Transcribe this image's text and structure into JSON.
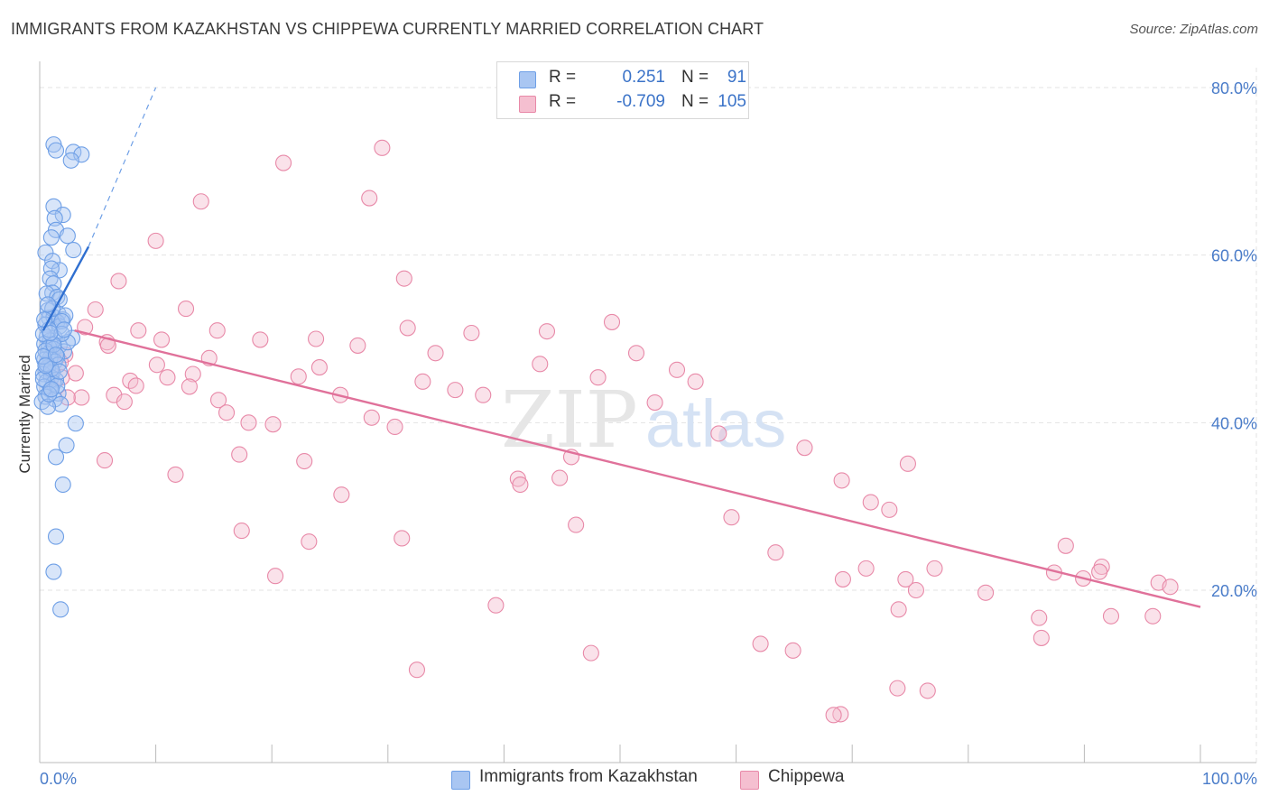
{
  "title": "IMMIGRANTS FROM KAZAKHSTAN VS CHIPPEWA CURRENTLY MARRIED CORRELATION CHART",
  "source": "Source: ZipAtlas.com",
  "watermark": {
    "zip": "ZIP",
    "atlas": "atlas"
  },
  "legend": {
    "rows": [
      {
        "r_label": "R =",
        "r_value": "0.251",
        "n_label": "N =",
        "n_value": "91"
      },
      {
        "r_label": "R =",
        "r_value": "-0.709",
        "n_label": "N =",
        "n_value": "105"
      }
    ]
  },
  "colors": {
    "blue": "#6e9fe6",
    "blue_fill": "#a9c6f2",
    "blue_line": "#2f6fd0",
    "pink": "#e889a8",
    "pink_fill": "#f5bfd0",
    "pink_line": "#e0719a",
    "grid": "#e3e3e3",
    "tick_text": "#4a7cc9"
  },
  "chart_data": {
    "type": "scatter",
    "title": "IMMIGRANTS FROM KAZAKHSTAN VS CHIPPEWA CURRENTLY MARRIED CORRELATION CHART",
    "xlabel": "",
    "ylabel": "Currently Married",
    "xlim": [
      0,
      100
    ],
    "ylim": [
      0,
      82
    ],
    "x_tick_labels": [
      "0.0%",
      "100.0%"
    ],
    "y_ticks": [
      20,
      40,
      60,
      80
    ],
    "y_tick_labels": [
      "20.0%",
      "40.0%",
      "60.0%",
      "80.0%"
    ],
    "grid": true,
    "legend_position": "top-center",
    "series": [
      {
        "name": "Immigrants from Kazakhstan",
        "r": 0.251,
        "n": 91,
        "trend": {
          "x": [
            0.3,
            4.2
          ],
          "y": [
            51.0,
            61.0
          ]
        },
        "trend_extension": {
          "x": [
            4.2,
            10.0
          ],
          "y": [
            61.0,
            80.0
          ]
        },
        "points": [
          [
            1.2,
            73.2
          ],
          [
            1.4,
            72.5
          ],
          [
            2.9,
            72.3
          ],
          [
            3.6,
            72.0
          ],
          [
            2.7,
            71.3
          ],
          [
            1.2,
            65.8
          ],
          [
            2.0,
            64.8
          ],
          [
            1.3,
            64.4
          ],
          [
            1.4,
            63.0
          ],
          [
            2.4,
            62.3
          ],
          [
            1.0,
            62.1
          ],
          [
            0.5,
            60.3
          ],
          [
            2.9,
            60.6
          ],
          [
            1.1,
            59.3
          ],
          [
            1.7,
            58.2
          ],
          [
            1.0,
            58.4
          ],
          [
            0.9,
            57.2
          ],
          [
            1.2,
            56.6
          ],
          [
            1.1,
            55.5
          ],
          [
            0.6,
            55.4
          ],
          [
            1.5,
            55.0
          ],
          [
            1.7,
            54.7
          ],
          [
            0.7,
            53.4
          ],
          [
            1.6,
            53.0
          ],
          [
            0.8,
            52.5
          ],
          [
            1.2,
            52.6
          ],
          [
            2.0,
            52.3
          ],
          [
            1.5,
            52.0
          ],
          [
            0.5,
            51.7
          ],
          [
            1.7,
            51.5
          ],
          [
            2.2,
            52.8
          ],
          [
            0.6,
            50.2
          ],
          [
            1.3,
            50.1
          ],
          [
            2.8,
            50.1
          ],
          [
            0.9,
            49.8
          ],
          [
            0.4,
            49.4
          ],
          [
            1.7,
            49.2
          ],
          [
            0.8,
            49.0
          ],
          [
            1.2,
            48.8
          ],
          [
            2.1,
            48.5
          ],
          [
            0.7,
            48.2
          ],
          [
            1.5,
            47.9
          ],
          [
            0.9,
            47.7
          ],
          [
            0.4,
            47.5
          ],
          [
            1.3,
            47.3
          ],
          [
            1.6,
            46.9
          ],
          [
            0.7,
            46.6
          ],
          [
            0.5,
            46.2
          ],
          [
            1.1,
            46.0
          ],
          [
            0.3,
            45.8
          ],
          [
            1.0,
            45.4
          ],
          [
            1.4,
            45.1
          ],
          [
            0.6,
            44.9
          ],
          [
            1.2,
            44.7
          ],
          [
            0.4,
            44.3
          ],
          [
            0.9,
            43.9
          ],
          [
            1.6,
            43.5
          ],
          [
            0.5,
            43.1
          ],
          [
            1.3,
            42.8
          ],
          [
            0.2,
            42.5
          ],
          [
            1.8,
            42.2
          ],
          [
            0.7,
            41.9
          ],
          [
            3.1,
            39.9
          ],
          [
            2.3,
            37.3
          ],
          [
            1.4,
            35.9
          ],
          [
            2.0,
            32.6
          ],
          [
            1.4,
            26.4
          ],
          [
            1.2,
            22.2
          ],
          [
            1.8,
            17.7
          ],
          [
            0.3,
            50.6
          ],
          [
            0.8,
            51.1
          ],
          [
            1.9,
            52.1
          ],
          [
            0.6,
            47.0
          ],
          [
            1.0,
            46.4
          ],
          [
            2.4,
            49.6
          ],
          [
            0.5,
            48.6
          ],
          [
            1.1,
            53.6
          ],
          [
            0.3,
            45.2
          ],
          [
            1.5,
            44.4
          ],
          [
            0.8,
            43.4
          ],
          [
            1.9,
            50.6
          ],
          [
            0.4,
            52.3
          ],
          [
            1.7,
            46.1
          ],
          [
            0.7,
            54.1
          ],
          [
            1.2,
            49.3
          ],
          [
            0.3,
            47.9
          ],
          [
            2.1,
            51.1
          ],
          [
            0.9,
            50.7
          ],
          [
            1.4,
            48.1
          ],
          [
            0.5,
            46.8
          ],
          [
            1.0,
            44.0
          ]
        ]
      },
      {
        "name": "Chippewa",
        "r": -0.709,
        "n": 105,
        "trend": {
          "x": [
            3.0,
            100.0
          ],
          "y": [
            51.0,
            18.0
          ]
        },
        "points": [
          [
            29.5,
            72.8
          ],
          [
            21.0,
            71.0
          ],
          [
            28.4,
            66.8
          ],
          [
            13.9,
            66.4
          ],
          [
            10.0,
            61.7
          ],
          [
            31.4,
            57.2
          ],
          [
            6.8,
            56.9
          ],
          [
            12.6,
            53.6
          ],
          [
            4.8,
            53.5
          ],
          [
            3.9,
            51.4
          ],
          [
            8.5,
            51.0
          ],
          [
            15.3,
            51.0
          ],
          [
            31.7,
            51.3
          ],
          [
            37.2,
            50.7
          ],
          [
            43.7,
            50.9
          ],
          [
            49.3,
            52.0
          ],
          [
            19.0,
            49.9
          ],
          [
            23.8,
            50.0
          ],
          [
            27.4,
            49.2
          ],
          [
            10.5,
            49.9
          ],
          [
            5.8,
            49.6
          ],
          [
            5.9,
            49.2
          ],
          [
            2.2,
            48.1
          ],
          [
            1.8,
            47.2
          ],
          [
            14.6,
            47.7
          ],
          [
            34.1,
            48.3
          ],
          [
            43.1,
            47.0
          ],
          [
            51.4,
            48.3
          ],
          [
            48.1,
            45.4
          ],
          [
            54.9,
            46.3
          ],
          [
            56.5,
            44.9
          ],
          [
            24.1,
            46.6
          ],
          [
            22.3,
            45.5
          ],
          [
            10.1,
            46.9
          ],
          [
            13.2,
            45.8
          ],
          [
            11.0,
            45.4
          ],
          [
            3.1,
            45.9
          ],
          [
            1.9,
            45.4
          ],
          [
            7.8,
            45.0
          ],
          [
            8.3,
            44.4
          ],
          [
            12.9,
            44.3
          ],
          [
            33.0,
            44.9
          ],
          [
            35.8,
            43.9
          ],
          [
            25.9,
            43.3
          ],
          [
            38.2,
            43.3
          ],
          [
            6.4,
            43.3
          ],
          [
            3.6,
            43.0
          ],
          [
            2.4,
            43.0
          ],
          [
            7.3,
            42.5
          ],
          [
            15.4,
            42.7
          ],
          [
            53.0,
            42.4
          ],
          [
            16.1,
            41.2
          ],
          [
            28.6,
            40.6
          ],
          [
            18.0,
            40.0
          ],
          [
            20.1,
            39.8
          ],
          [
            30.6,
            39.5
          ],
          [
            58.5,
            38.7
          ],
          [
            65.9,
            37.0
          ],
          [
            17.2,
            36.2
          ],
          [
            45.8,
            35.9
          ],
          [
            5.6,
            35.5
          ],
          [
            22.8,
            35.4
          ],
          [
            11.7,
            33.8
          ],
          [
            44.8,
            33.4
          ],
          [
            41.2,
            33.3
          ],
          [
            41.4,
            32.6
          ],
          [
            74.8,
            35.1
          ],
          [
            69.1,
            33.1
          ],
          [
            71.6,
            30.5
          ],
          [
            73.2,
            29.6
          ],
          [
            59.6,
            28.7
          ],
          [
            26.0,
            31.4
          ],
          [
            46.2,
            27.8
          ],
          [
            17.4,
            27.1
          ],
          [
            23.2,
            25.8
          ],
          [
            31.2,
            26.2
          ],
          [
            63.4,
            24.5
          ],
          [
            71.2,
            22.6
          ],
          [
            77.1,
            22.6
          ],
          [
            87.4,
            22.1
          ],
          [
            91.5,
            22.8
          ],
          [
            96.4,
            20.9
          ],
          [
            74.6,
            21.3
          ],
          [
            69.2,
            21.3
          ],
          [
            20.3,
            21.7
          ],
          [
            89.9,
            21.4
          ],
          [
            88.4,
            25.3
          ],
          [
            91.3,
            22.2
          ],
          [
            75.5,
            20.0
          ],
          [
            97.4,
            20.4
          ],
          [
            81.5,
            19.7
          ],
          [
            39.3,
            18.2
          ],
          [
            74.0,
            17.7
          ],
          [
            92.3,
            16.9
          ],
          [
            95.9,
            16.9
          ],
          [
            86.3,
            14.3
          ],
          [
            86.1,
            16.7
          ],
          [
            62.1,
            13.6
          ],
          [
            64.9,
            12.8
          ],
          [
            73.9,
            8.3
          ],
          [
            76.5,
            8.0
          ],
          [
            69.0,
            5.2
          ],
          [
            68.4,
            5.1
          ],
          [
            47.5,
            12.5
          ],
          [
            32.5,
            10.5
          ]
        ]
      }
    ]
  },
  "bottom_legend": [
    {
      "label": "Immigrants from Kazakhstan"
    },
    {
      "label": "Chippewa"
    }
  ]
}
